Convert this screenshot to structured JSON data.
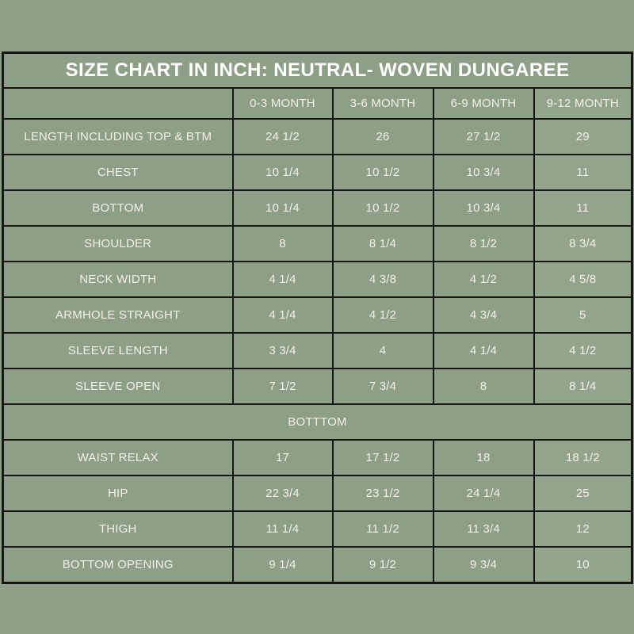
{
  "colors": {
    "background": "#8D9F86",
    "grid_border": "#161616",
    "title_text": "#FFFFFF",
    "cell_text": "#F3F1E4"
  },
  "chart_data": {
    "type": "table",
    "title": "SIZE CHART IN INCH: NEUTRAL- WOVEN DUNGAREE",
    "unit": "INCH",
    "columns": [
      "0-3 MONTH",
      "3-6 MONTH",
      "6-9 MONTH",
      "9-12 MONTH"
    ],
    "rows": [
      {
        "label": "LENGTH INCLUDING TOP & BTM",
        "values": [
          "24 1/2",
          "26",
          "27 1/2",
          "29"
        ]
      },
      {
        "label": "CHEST",
        "values": [
          "10 1/4",
          "10 1/2",
          "10 3/4",
          "11"
        ]
      },
      {
        "label": "BOTTOM",
        "values": [
          "10 1/4",
          "10 1/2",
          "10 3/4",
          "11"
        ]
      },
      {
        "label": "SHOULDER",
        "values": [
          "8",
          "8 1/4",
          "8 1/2",
          "8 3/4"
        ]
      },
      {
        "label": "NECK WIDTH",
        "values": [
          "4 1/4",
          "4 3/8",
          "4 1/2",
          "4 5/8"
        ]
      },
      {
        "label": "ARMHOLE STRAIGHT",
        "values": [
          "4 1/4",
          "4 1/2",
          "4 3/4",
          "5"
        ]
      },
      {
        "label": "SLEEVE LENGTH",
        "values": [
          "3 3/4",
          "4",
          "4 1/4",
          "4 1/2"
        ]
      },
      {
        "label": "SLEEVE OPEN",
        "values": [
          "7 1/2",
          "7 3/4",
          "8",
          "8 1/4"
        ]
      }
    ],
    "section_header": "BOTTTOM",
    "section_rows": [
      {
        "label": "WAIST RELAX",
        "values": [
          "17",
          "17 1/2",
          "18",
          "18 1/2"
        ]
      },
      {
        "label": "HIP",
        "values": [
          "22 3/4",
          "23 1/2",
          "24 1/4",
          "25"
        ]
      },
      {
        "label": "THIGH",
        "values": [
          "11 1/4",
          "11 1/2",
          "11 3/4",
          "12"
        ]
      },
      {
        "label": "BOTTOM OPENING",
        "values": [
          "9 1/4",
          "9 1/2",
          "9 3/4",
          "10"
        ]
      }
    ]
  }
}
